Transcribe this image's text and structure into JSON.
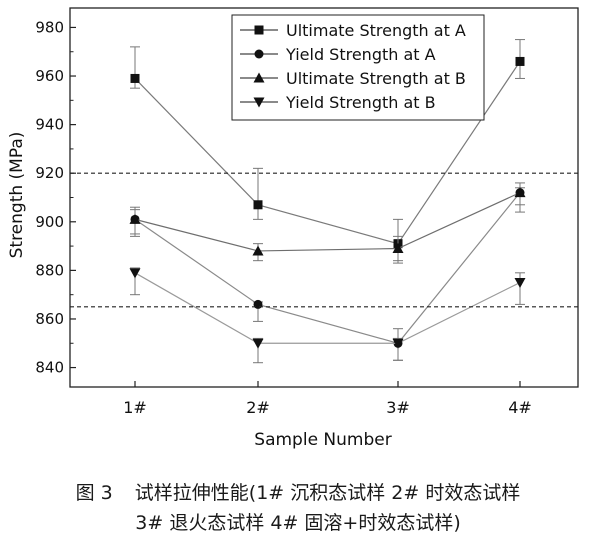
{
  "chart_data": {
    "type": "line",
    "xlabel": "Sample Number",
    "ylabel": "Strength (MPa)",
    "categories": [
      "1#",
      "2#",
      "3#",
      "4#"
    ],
    "ylim": [
      832,
      988
    ],
    "yticks": [
      840,
      860,
      880,
      900,
      920,
      940,
      960,
      980
    ],
    "grid": false,
    "legend_position": "top-right",
    "reference_lines": [
      920,
      865
    ],
    "series": [
      {
        "name": "Ultimate Strength at A",
        "marker": "square",
        "values": [
          959,
          907,
          891,
          966
        ],
        "error": [
          [
            955,
            972
          ],
          [
            901,
            922
          ],
          [
            884,
            901
          ],
          [
            959,
            975
          ]
        ]
      },
      {
        "name": "Yield Strength at A",
        "marker": "circle",
        "values": [
          901,
          866,
          850,
          912
        ],
        "error": [
          [
            894,
            905
          ],
          [
            859,
            867
          ],
          [
            843,
            856
          ],
          [
            904,
            914
          ]
        ]
      },
      {
        "name": "Ultimate Strength at B",
        "marker": "triangle-up",
        "values": [
          901,
          888,
          889,
          912
        ],
        "error": [
          [
            895,
            906
          ],
          [
            884,
            891
          ],
          [
            883,
            894
          ],
          [
            907,
            916
          ]
        ]
      },
      {
        "name": "Yield Strength at B",
        "marker": "triangle-down",
        "values": [
          879,
          850,
          850,
          875
        ],
        "error": [
          [
            870,
            881
          ],
          [
            842,
            852
          ],
          [
            843,
            852
          ],
          [
            866,
            879
          ]
        ]
      }
    ]
  },
  "caption": {
    "label": "图 3",
    "line1": "试样拉伸性能(1# 沉积态试样 2# 时效态试样",
    "line2": "3# 退火态试样 4# 固溶+时效态试样)"
  }
}
